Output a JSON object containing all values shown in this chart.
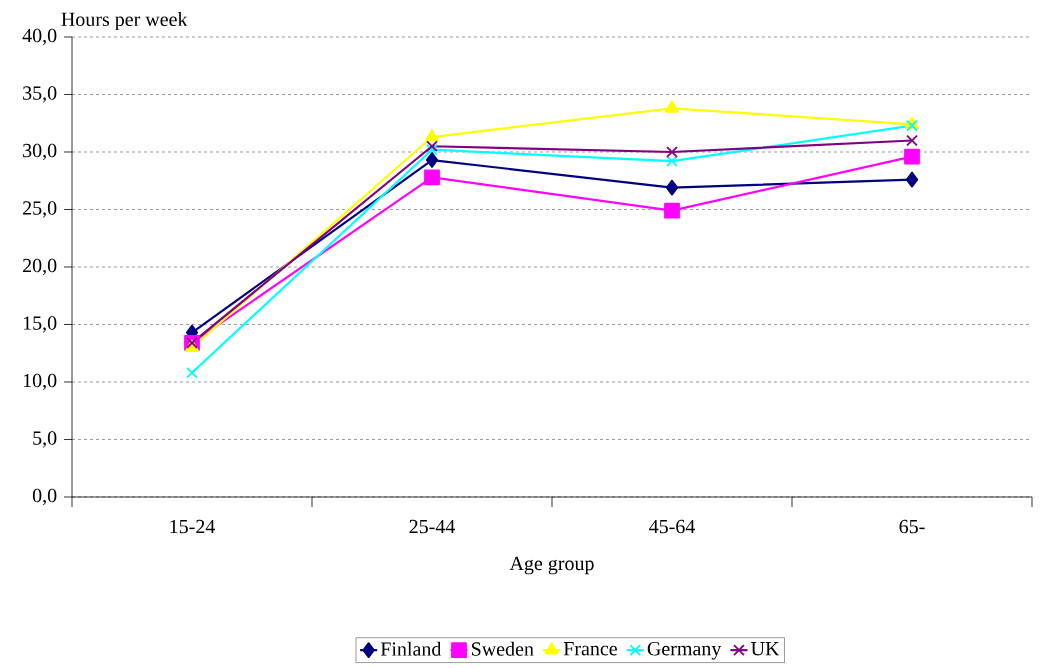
{
  "chart_data": {
    "type": "line",
    "xlabel": "Age group",
    "ylabel": "Hours per week",
    "categories": [
      "15-24",
      "25-44",
      "45-64",
      "65-"
    ],
    "series": [
      {
        "name": "Finland",
        "color": "#000080",
        "marker": "diamond",
        "values": [
          14.3,
          29.3,
          26.9,
          27.6
        ]
      },
      {
        "name": "Sweden",
        "color": "#ff00ff",
        "marker": "square",
        "values": [
          13.4,
          27.8,
          24.9,
          29.6
        ]
      },
      {
        "name": "France",
        "color": "#ffff00",
        "marker": "triangle",
        "values": [
          13.0,
          31.3,
          33.8,
          32.4
        ]
      },
      {
        "name": "Germany",
        "color": "#00ffff",
        "marker": "cross",
        "values": [
          10.8,
          30.2,
          29.2,
          32.3
        ]
      },
      {
        "name": "UK",
        "color": "#800080",
        "marker": "cross",
        "values": [
          13.4,
          30.5,
          30.0,
          31.0
        ]
      }
    ],
    "ylim": [
      0,
      40
    ],
    "yticks": [
      {
        "value": 0,
        "label": "0,0"
      },
      {
        "value": 5,
        "label": "5,0"
      },
      {
        "value": 10,
        "label": "10,0"
      },
      {
        "value": 15,
        "label": "15,0"
      },
      {
        "value": 20,
        "label": "20,0"
      },
      {
        "value": 25,
        "label": "25,0"
      },
      {
        "value": 30,
        "label": "30,0"
      },
      {
        "value": 35,
        "label": "35,0"
      },
      {
        "value": 40,
        "label": "40,0"
      }
    ],
    "grid": "y",
    "legend": "bottom",
    "line_style": "solid"
  }
}
